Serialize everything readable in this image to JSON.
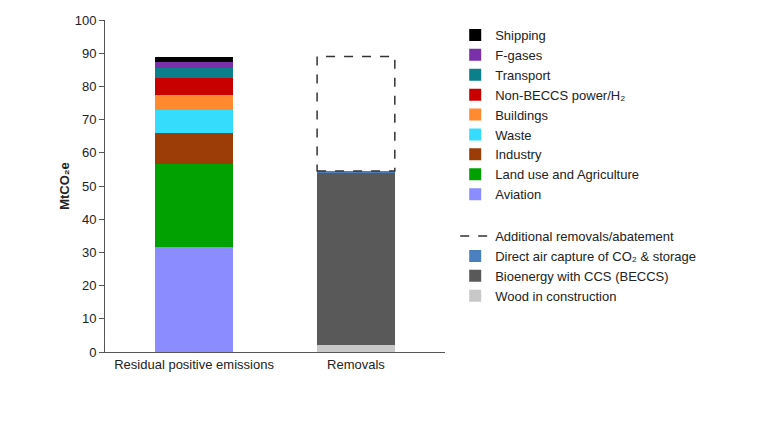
{
  "chart_data": {
    "type": "bar",
    "stacked": true,
    "y_label": "MtCO₂e",
    "categories": [
      "Residual positive emissions",
      "Removals"
    ],
    "series": [
      {
        "name": "Aviation",
        "color": "#8a8cff",
        "values": [
          31.5,
          null
        ]
      },
      {
        "name": "Land use and Agriculture",
        "color": "#00a100",
        "values": [
          25,
          null
        ]
      },
      {
        "name": "Industry",
        "color": "#9c3c06",
        "values": [
          9.5,
          null
        ]
      },
      {
        "name": "Waste",
        "color": "#36dcfc",
        "values": [
          7,
          null
        ]
      },
      {
        "name": "Buildings",
        "color": "#ff8a30",
        "values": [
          4.5,
          null
        ]
      },
      {
        "name": "Non-BECCS power/H₂",
        "color": "#c80000",
        "values": [
          5,
          null
        ]
      },
      {
        "name": "Transport",
        "color": "#0b7f8c",
        "values": [
          3,
          null
        ]
      },
      {
        "name": "F-gases",
        "color": "#7a30a8",
        "values": [
          2,
          null
        ]
      },
      {
        "name": "Shipping",
        "color": "#000000",
        "values": [
          1.5,
          null
        ]
      },
      {
        "name": "Wood in construction",
        "color": "#c8c8c8",
        "values": [
          null,
          2
        ]
      },
      {
        "name": "Bioenergy with CCS (BECCS)",
        "color": "#595959",
        "values": [
          null,
          52
        ]
      },
      {
        "name": "Direct air capture of CO₂ & storage",
        "color": "#4a7fc0",
        "values": [
          null,
          0.5
        ]
      },
      {
        "name": "Additional removals/abatement",
        "color": "#ffffff",
        "line_style": "dashed",
        "values": [
          null,
          34.5
        ]
      }
    ],
    "ylim": [
      0,
      100
    ],
    "yticks": [
      0,
      10,
      20,
      30,
      40,
      50,
      60,
      70,
      80,
      90,
      100
    ],
    "grid": false,
    "legend": "right"
  }
}
